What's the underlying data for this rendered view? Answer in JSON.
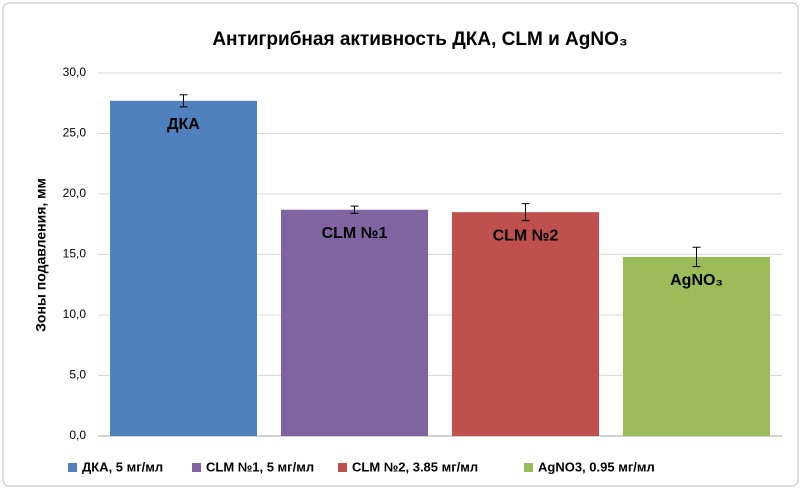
{
  "chart_data": {
    "type": "bar",
    "title": "Антигрибная активность ДКА, CLM и AgNO₃",
    "y_label": "Зоны подавления, мм",
    "ylim": [
      0,
      30
    ],
    "yticks": [
      {
        "value": 0,
        "label": "0,0"
      },
      {
        "value": 5,
        "label": "5,0"
      },
      {
        "value": 10,
        "label": "10,0"
      },
      {
        "value": 15,
        "label": "15,0"
      },
      {
        "value": 20,
        "label": "20,0"
      },
      {
        "value": 25,
        "label": "25,0"
      },
      {
        "value": 30,
        "label": "30,0"
      }
    ],
    "grid": true,
    "legend": "bottom",
    "series": [
      {
        "name": "ДКА, 5 мг/мл",
        "color": "#4f81bd",
        "values": [
          27.7
        ],
        "errors": [
          0.5
        ],
        "label": "ДКА"
      },
      {
        "name": "CLM №1, 5 мг/мл",
        "color": "#8064a2",
        "values": [
          18.7
        ],
        "errors": [
          0.3
        ],
        "label": "CLM №1"
      },
      {
        "name": "CLM №2, 3.85 мг/мл",
        "color": "#c0504d",
        "values": [
          18.5
        ],
        "errors": [
          0.7
        ],
        "label": "CLM №2"
      },
      {
        "name": "AgNO3, 0.95 мг/мл",
        "color": "#9bbb59",
        "values": [
          14.8
        ],
        "errors": [
          0.8
        ],
        "label": "AgNO₃"
      }
    ]
  }
}
